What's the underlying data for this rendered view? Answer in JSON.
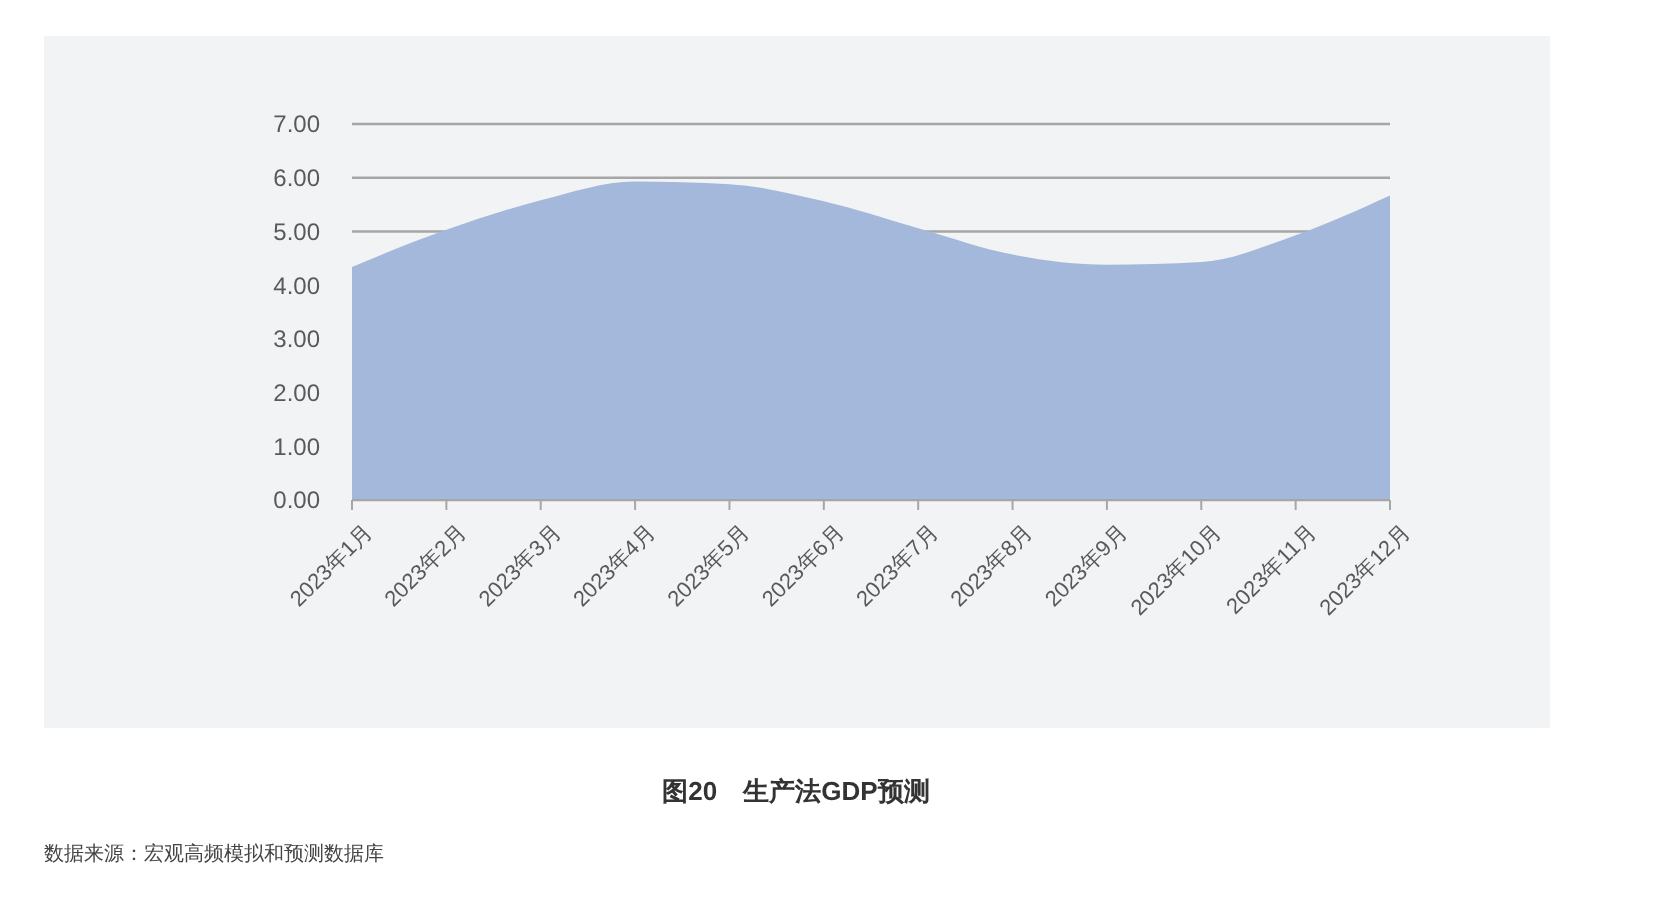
{
  "chart_data": {
    "type": "area",
    "title": "图20　生产法GDP预测",
    "annotations": [
      "数据来源：宏观高频模拟和预测数据库"
    ],
    "categories": [
      "2023年1月",
      "2023年2月",
      "2023年3月",
      "2023年4月",
      "2023年5月",
      "2023年6月",
      "2023年7月",
      "2023年8月",
      "2023年9月",
      "2023年10月",
      "2023年11月",
      "2023年12月"
    ],
    "series": [
      {
        "color": "#a3b8da",
        "values": [
          4.34,
          5.03,
          5.58,
          5.93,
          5.88,
          5.56,
          5.06,
          4.57,
          4.38,
          4.43,
          4.93,
          5.67
        ]
      }
    ],
    "ylim": [
      0,
      7
    ],
    "yticks": [
      {
        "value": 0,
        "label": "0.00"
      },
      {
        "value": 1,
        "label": "1.00"
      },
      {
        "value": 2,
        "label": "2.00"
      },
      {
        "value": 3,
        "label": "3.00"
      },
      {
        "value": 4,
        "label": "4.00"
      },
      {
        "value": 5,
        "label": "5.00"
      },
      {
        "value": 6,
        "label": "6.00"
      },
      {
        "value": 7,
        "label": "7.00"
      }
    ],
    "grid": "y"
  }
}
